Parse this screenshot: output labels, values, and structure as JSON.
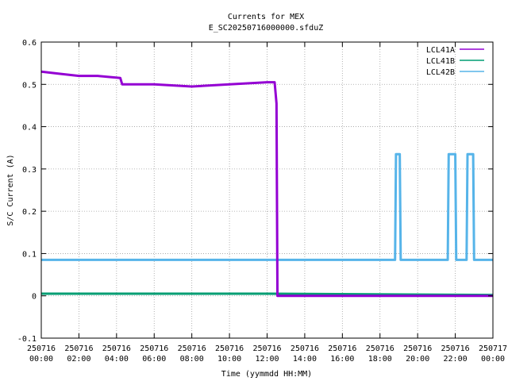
{
  "chart_data": {
    "type": "line",
    "title": "Currents for MEX",
    "subtitle": "E_SC20250716000000.sfduZ",
    "xlabel": "Time (yymmdd HH:MM)",
    "ylabel": "S/C Current (A)",
    "xlim_hours": [
      0,
      24
    ],
    "ylim": [
      -0.1,
      0.6
    ],
    "yticks": [
      "-0.1",
      "0",
      "0.1",
      "0.2",
      "0.3",
      "0.4",
      "0.5",
      "0.6"
    ],
    "xticks": [
      {
        "date": "250716",
        "time": "00:00"
      },
      {
        "date": "250716",
        "time": "02:00"
      },
      {
        "date": "250716",
        "time": "04:00"
      },
      {
        "date": "250716",
        "time": "06:00"
      },
      {
        "date": "250716",
        "time": "08:00"
      },
      {
        "date": "250716",
        "time": "10:00"
      },
      {
        "date": "250716",
        "time": "12:00"
      },
      {
        "date": "250716",
        "time": "14:00"
      },
      {
        "date": "250716",
        "time": "16:00"
      },
      {
        "date": "250716",
        "time": "18:00"
      },
      {
        "date": "250716",
        "time": "20:00"
      },
      {
        "date": "250716",
        "time": "22:00"
      },
      {
        "date": "250717",
        "time": "00:00"
      }
    ],
    "grid": true,
    "legend_position": "top-right",
    "series": [
      {
        "name": "LCL41A",
        "color": "#9400d3",
        "points": [
          [
            0,
            0.53
          ],
          [
            1,
            0.525
          ],
          [
            2,
            0.52
          ],
          [
            3,
            0.52
          ],
          [
            4.2,
            0.515
          ],
          [
            4.3,
            0.5
          ],
          [
            6,
            0.5
          ],
          [
            8,
            0.495
          ],
          [
            10,
            0.5
          ],
          [
            12,
            0.505
          ],
          [
            12.4,
            0.505
          ],
          [
            12.5,
            0.455
          ],
          [
            12.55,
            0.0
          ],
          [
            24,
            0.0
          ]
        ]
      },
      {
        "name": "LCL41B",
        "color": "#009e73",
        "points": [
          [
            0,
            0.005
          ],
          [
            12,
            0.005
          ],
          [
            24,
            0.002
          ]
        ]
      },
      {
        "name": "LCL42B",
        "color": "#56b4e9",
        "points": [
          [
            0,
            0.085
          ],
          [
            18.8,
            0.085
          ],
          [
            18.85,
            0.335
          ],
          [
            19.05,
            0.335
          ],
          [
            19.1,
            0.085
          ],
          [
            21.6,
            0.085
          ],
          [
            21.65,
            0.335
          ],
          [
            22.0,
            0.335
          ],
          [
            22.05,
            0.085
          ],
          [
            22.6,
            0.085
          ],
          [
            22.65,
            0.335
          ],
          [
            22.95,
            0.335
          ],
          [
            23.0,
            0.085
          ],
          [
            24,
            0.085
          ]
        ]
      }
    ]
  }
}
